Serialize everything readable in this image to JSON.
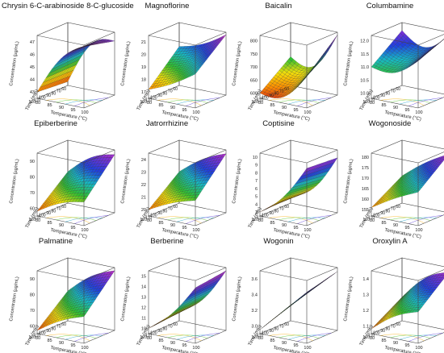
{
  "figure": {
    "background": "#ffffff",
    "box_color": "#444444",
    "grid_color": "#222222",
    "colormap": [
      "#d31b1b",
      "#ff8c00",
      "#f5e10a",
      "#2fc12f",
      "#16b9c7",
      "#1f3ee0",
      "#7b2fd6",
      "#e22fb0"
    ]
  },
  "chart_data": [
    {
      "type": "surface3d",
      "title": "Chrysin 6-C-arabinoside 8-C-glucoside",
      "xlabel": "Temperature (°C)",
      "ylabel": "Time (min)",
      "zlabel": "Concentration (µg/mL)",
      "x_ticks": [
        "80",
        "85",
        "90",
        "95",
        "100"
      ],
      "y_ticks": [
        "60",
        "70",
        "80",
        "90",
        "100",
        "110",
        "120"
      ],
      "z_ticks": [
        "43",
        "44",
        "45",
        "46",
        "47"
      ],
      "zlim": [
        42.5,
        47.5
      ],
      "corners": [
        43.0,
        47.4,
        42.8,
        46.8
      ],
      "curvature": 1.5
    },
    {
      "type": "surface3d",
      "title": "Magnoflorine",
      "xlabel": "Temperature (°C)",
      "ylabel": "Time (min)",
      "zlabel": "Concentration (µg/mL)",
      "x_ticks": [
        "80",
        "85",
        "90",
        "95",
        "100"
      ],
      "y_ticks": [
        "60",
        "70",
        "80",
        "90",
        "100",
        "110",
        "120"
      ],
      "z_ticks": [
        "17",
        "18",
        "19",
        "20",
        "21"
      ],
      "zlim": [
        16.5,
        21.5
      ],
      "corners": [
        17.2,
        19.2,
        19.6,
        21.3
      ],
      "curvature": -0.3
    },
    {
      "type": "surface3d",
      "title": "Baicalin",
      "xlabel": "Temperature (°C)",
      "ylabel": "Time (min)",
      "zlabel": "Concentration (µg/mL)",
      "x_ticks": [
        "80",
        "85",
        "90",
        "95",
        "100"
      ],
      "y_ticks": [
        "60",
        "70",
        "80",
        "90",
        "100",
        "110",
        "120"
      ],
      "z_ticks": [
        "600",
        "650",
        "700",
        "750",
        "800"
      ],
      "zlim": [
        580,
        820
      ],
      "corners": [
        600,
        700,
        690,
        810
      ],
      "curvature": -1.8
    },
    {
      "type": "surface3d",
      "title": "Columbamine",
      "xlabel": "Temperature (°C)",
      "ylabel": "Time (min)",
      "zlabel": "Concentration (µg/mL)",
      "x_ticks": [
        "80",
        "85",
        "90",
        "95",
        "100"
      ],
      "y_ticks": [
        "60",
        "70",
        "80",
        "90",
        "100",
        "110",
        "120"
      ],
      "z_ticks": [
        "10.0",
        "10.5",
        "11.0",
        "11.5",
        "12.0"
      ],
      "zlim": [
        9.8,
        12.2
      ],
      "corners": [
        11.0,
        11.6,
        11.9,
        12.1
      ],
      "curvature": -1.3
    },
    {
      "type": "surface3d",
      "title": "Epiberberine",
      "xlabel": "Temperature (°C)",
      "ylabel": "Time (min)",
      "zlabel": "Concentration (µg/mL)",
      "x_ticks": [
        "80",
        "85",
        "90",
        "95",
        "100"
      ],
      "y_ticks": [
        "60",
        "70",
        "80",
        "90",
        "100",
        "110",
        "120"
      ],
      "z_ticks": [
        "60",
        "70",
        "80",
        "90"
      ],
      "zlim": [
        55,
        95
      ],
      "corners": [
        58,
        70,
        75,
        92
      ],
      "curvature": 0.5
    },
    {
      "type": "surface3d",
      "title": "Jatrorrhizine",
      "xlabel": "Temperature (°C)",
      "ylabel": "Time (min)",
      "zlabel": "Concentration (µg/mL)",
      "x_ticks": [
        "80",
        "85",
        "90",
        "95",
        "100"
      ],
      "y_ticks": [
        "60",
        "70",
        "80",
        "90",
        "100",
        "110",
        "120"
      ],
      "z_ticks": [
        "20",
        "21",
        "22",
        "23",
        "24"
      ],
      "zlim": [
        19.5,
        24.5
      ],
      "corners": [
        20.0,
        21.5,
        22.0,
        24.2
      ],
      "curvature": 0.3
    },
    {
      "type": "surface3d",
      "title": "Coptisine",
      "xlabel": "Temperature (°C)",
      "ylabel": "Time (min)",
      "zlabel": "Concentration (µg/mL)",
      "x_ticks": [
        "80",
        "85",
        "90",
        "95",
        "100"
      ],
      "y_ticks": [
        "60",
        "70",
        "80",
        "90",
        "100",
        "110",
        "120"
      ],
      "z_ticks": [
        "3",
        "4",
        "5",
        "6",
        "7",
        "8",
        "9",
        "10"
      ],
      "zlim": [
        2.5,
        10.5
      ],
      "corners": [
        3.0,
        9.8,
        3.5,
        9.5
      ],
      "curvature": -1.0
    },
    {
      "type": "surface3d",
      "title": "Wogonoside",
      "xlabel": "Temperature (°C)",
      "ylabel": "Time (min)",
      "zlabel": "Concentration (µg/mL)",
      "x_ticks": [
        "80",
        "85",
        "90",
        "95",
        "100"
      ],
      "y_ticks": [
        "60",
        "70",
        "80",
        "90",
        "100",
        "110",
        "120"
      ],
      "z_ticks": [
        "155",
        "160",
        "165",
        "170",
        "175",
        "180"
      ],
      "zlim": [
        152,
        182
      ],
      "corners": [
        156,
        168,
        165,
        180
      ],
      "curvature": 0.2
    },
    {
      "type": "surface3d",
      "title": "Palmatine",
      "xlabel": "Temperature (°C)",
      "ylabel": "Time (min)",
      "zlabel": "Concentration (µg/mL)",
      "x_ticks": [
        "80",
        "85",
        "90",
        "95",
        "100"
      ],
      "y_ticks": [
        "60",
        "70",
        "80",
        "90",
        "100",
        "110",
        "120"
      ],
      "z_ticks": [
        "60",
        "70",
        "80",
        "90"
      ],
      "zlim": [
        55,
        95
      ],
      "corners": [
        57,
        72,
        74,
        93
      ],
      "curvature": 0.4
    },
    {
      "type": "surface3d",
      "title": "Berberine",
      "xlabel": "Temperature (°C)",
      "ylabel": "Time (min)",
      "zlabel": "Concentration (µg/mL)",
      "x_ticks": [
        "80",
        "85",
        "90",
        "95",
        "100"
      ],
      "y_ticks": [
        "60",
        "70",
        "80",
        "90",
        "100",
        "110",
        "120"
      ],
      "z_ticks": [
        "10",
        "11",
        "12",
        "13",
        "14",
        "15"
      ],
      "zlim": [
        9.5,
        15.5
      ],
      "corners": [
        10.0,
        14.8,
        10.5,
        15.2
      ],
      "curvature": -0.8
    },
    {
      "type": "surface3d",
      "title": "Wogonin",
      "xlabel": "Temperature (°C)",
      "ylabel": "Time (min)",
      "zlabel": "Concentration (µg/mL)",
      "x_ticks": [
        "80",
        "85",
        "90",
        "95",
        "100"
      ],
      "y_ticks": [
        "60",
        "70",
        "80",
        "90",
        "100",
        "110",
        "120"
      ],
      "z_ticks": [
        "3.0",
        "3.2",
        "3.4",
        "3.6"
      ],
      "zlim": [
        2.9,
        3.7
      ],
      "corners": [
        2.95,
        3.55,
        3.1,
        3.65
      ],
      "curvature": 0.0
    },
    {
      "type": "surface3d",
      "title": "Oroxylin A",
      "xlabel": "Temperature (°C)",
      "ylabel": "Time (min)",
      "zlabel": "Concentration (µg/mL)",
      "x_ticks": [
        "80",
        "85",
        "90",
        "95",
        "100"
      ],
      "y_ticks": [
        "60",
        "70",
        "80",
        "90",
        "100",
        "110",
        "120"
      ],
      "z_ticks": [
        "1.1",
        "1.2",
        "1.3",
        "1.4"
      ],
      "zlim": [
        1.05,
        1.45
      ],
      "corners": [
        1.08,
        1.25,
        1.2,
        1.42
      ],
      "curvature": 0.6
    }
  ]
}
